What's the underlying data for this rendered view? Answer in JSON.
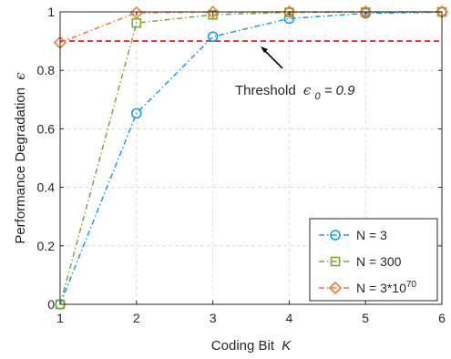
{
  "chart_data": {
    "type": "line",
    "xlabel": "Coding Bit",
    "xlabel_var": "K",
    "ylabel": "Performance Degradation",
    "ylabel_var": "ϵ",
    "xlim": [
      1,
      6
    ],
    "ylim": [
      0,
      1
    ],
    "x_ticks": [
      "1",
      "2",
      "3",
      "4",
      "5",
      "6"
    ],
    "y_ticks": [
      "0",
      "0.2",
      "0.4",
      "0.6",
      "0.8",
      "1"
    ],
    "grid": true,
    "legend_position": "bottom-right",
    "x": [
      1,
      2,
      3,
      4,
      5,
      6
    ],
    "series": [
      {
        "name": "N = 3",
        "name_base": "N = 3",
        "name_sup": "",
        "color": "#1b9de2",
        "marker": "circle",
        "dash": "6,3,1.5,3",
        "values": [
          0,
          0.653,
          0.915,
          0.977,
          0.995,
          0.999
        ]
      },
      {
        "name": "N = 300",
        "name_base": "N = 300",
        "name_sup": "",
        "color": "#77ac30",
        "marker": "square",
        "dash": "6,3,1.5,3",
        "values": [
          0,
          0.962,
          0.99,
          0.998,
          0.999,
          1.0
        ]
      },
      {
        "name": "N = 3*10^70",
        "name_base": "N = 3*10",
        "name_sup": "70",
        "color": "#f07838",
        "marker": "diamond",
        "dash": "6,3,1.5,3",
        "values": [
          0.895,
          0.997,
          0.999,
          1.0,
          1.0,
          1.0
        ]
      }
    ],
    "threshold": {
      "value": 0.9,
      "color": "#ff0000",
      "label_prefix": "Threshold",
      "label_symbol": "ϵ",
      "label_sub": "0",
      "label_value": " = 0.9"
    }
  }
}
